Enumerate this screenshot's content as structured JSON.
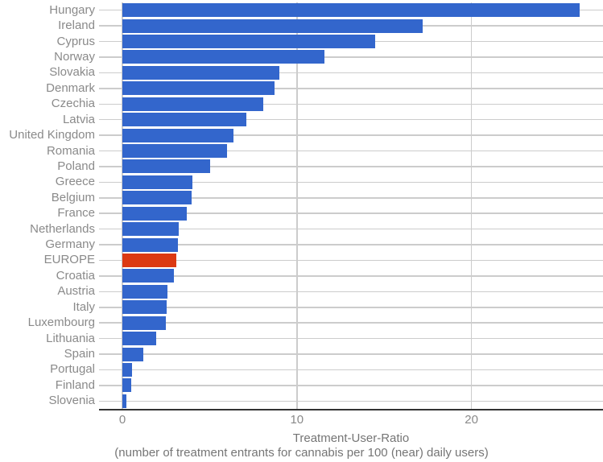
{
  "chart_data": {
    "type": "bar",
    "orientation": "horizontal",
    "title": "",
    "xlabel": "Treatment-User-Ratio",
    "xlabel_sub": "(number of treatment entrants for cannabis per 100 (near) daily users)",
    "ylabel": "",
    "categories": [
      "Hungary",
      "Ireland",
      "Cyprus",
      "Norway",
      "Slovakia",
      "Denmark",
      "Czechia",
      "Latvia",
      "United Kingdom",
      "Romania",
      "Poland",
      "Greece",
      "Belgium",
      "France",
      "Netherlands",
      "Germany",
      "EUROPE",
      "Croatia",
      "Austria",
      "Italy",
      "Luxembourg",
      "Lithuania",
      "Spain",
      "Portugal",
      "Finland",
      "Slovenia"
    ],
    "values": [
      26.2,
      17.2,
      14.5,
      11.6,
      9.0,
      8.7,
      8.05,
      7.1,
      6.35,
      6.0,
      5.05,
      4.0,
      3.95,
      3.7,
      3.25,
      3.2,
      3.1,
      2.95,
      2.6,
      2.55,
      2.5,
      1.95,
      1.2,
      0.55,
      0.5,
      0.25
    ],
    "highlight_category": "EUROPE",
    "x_ticks": [
      0,
      10,
      20
    ],
    "xlim": [
      0,
      27.5
    ],
    "grid": true,
    "legend": "none",
    "colors": {
      "bar": "#3366cc",
      "highlight": "#dc3912",
      "gridline": "#cccccc",
      "axis_line": "#333333",
      "category_text": "#8a8a8a",
      "tick_text": "#8a8a8a",
      "title_text": "#757575"
    }
  }
}
